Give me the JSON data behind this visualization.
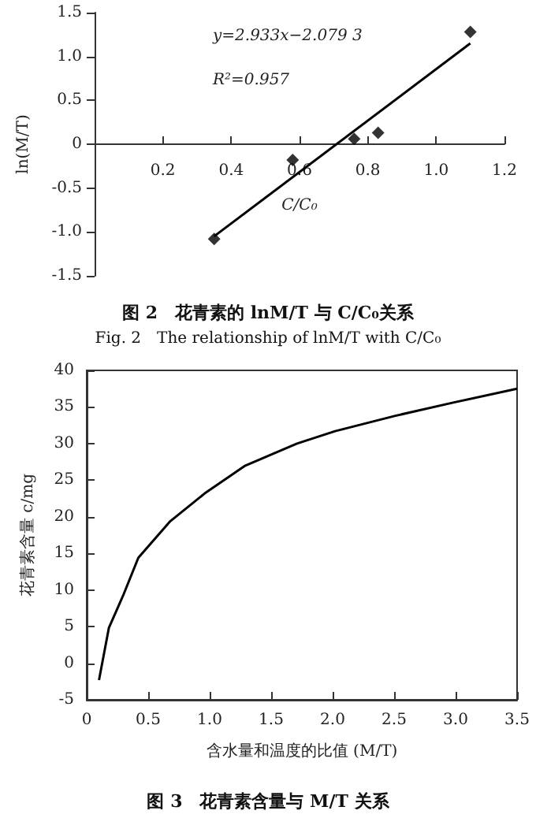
{
  "chart_data": [
    {
      "type": "scatter",
      "title": "图 2　花青素的 lnM/T 与 C/C₀关系",
      "subtitle": "Fig. 2　The relationship of lnM/T with C/C₀",
      "xlabel": "C/C₀",
      "ylabel": "ln(M/T)",
      "annotations": [
        "y=2.933x−2.079 3",
        "R²=0.957"
      ],
      "xlim": [
        0,
        1.2
      ],
      "xticks": [
        0.2,
        0.4,
        0.6,
        0.8,
        {
          "value": 1,
          "label": "1.0"
        },
        1.2
      ],
      "ylim": [
        -1.5,
        1.5
      ],
      "yticks": [
        -1.5,
        {
          "value": -1,
          "label": "-1.0"
        },
        -0.5,
        0,
        0.5,
        {
          "value": 1,
          "label": "1.0"
        },
        1.5
      ],
      "grid": false,
      "series": [
        {
          "marker": "diamond",
          "color": "#000000",
          "x": [
            0.35,
            0.58,
            0.76,
            0.83,
            1.1
          ],
          "values": [
            -1.08,
            -0.18,
            0.06,
            0.13,
            1.28
          ]
        },
        {
          "type": "line",
          "marker": "none",
          "line_style": "solid",
          "color": "#000000",
          "x": [
            0.35,
            1.1
          ],
          "values": [
            -1.05,
            1.15
          ]
        }
      ]
    },
    {
      "type": "line",
      "title": "图 3　花青素含量与 M/T 关系",
      "xlabel": "含水量和温度的比值 (M/T)",
      "ylabel": "花青素含量 c/mg",
      "xlim": [
        0,
        3.5
      ],
      "xticks": [
        0,
        0.5,
        {
          "value": 1,
          "label": "1.0"
        },
        1.5,
        {
          "value": 2,
          "label": "2.0"
        },
        2.5,
        {
          "value": 3,
          "label": "3.0"
        },
        3.5
      ],
      "ylim": [
        -5,
        40
      ],
      "yticks": [
        -5,
        0,
        5,
        10,
        15,
        20,
        25,
        30,
        35,
        40
      ],
      "grid": false,
      "marker": "none",
      "line_style": "solid",
      "series": [
        {
          "color": "#000000",
          "x": [
            0.1,
            0.18,
            0.3,
            0.42,
            0.68,
            0.96,
            1.29,
            1.71,
            2.02,
            2.51,
            2.98,
            3.5
          ],
          "values": [
            -2.3,
            4.8,
            9.4,
            14.4,
            19.4,
            23.2,
            27,
            30,
            31.7,
            33.8,
            35.6,
            37.5
          ]
        }
      ]
    }
  ]
}
